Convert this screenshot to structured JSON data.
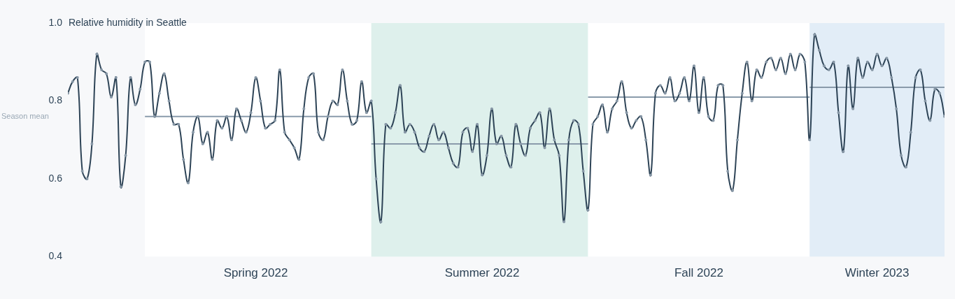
{
  "chart_data": {
    "type": "line",
    "title": "Relative humidity in Seattle",
    "categories": [
      null,
      null,
      null,
      null,
      null,
      null,
      null,
      null,
      null,
      null,
      null,
      null,
      null,
      null,
      null,
      null,
      null,
      null,
      null,
      null,
      null,
      null,
      null,
      null,
      null,
      null,
      null,
      null,
      null,
      null,
      null,
      null,
      null,
      null,
      null,
      null,
      null,
      null,
      null,
      "Spring 2022",
      null,
      null,
      null,
      null,
      null,
      null,
      null,
      null,
      null,
      null,
      null,
      null,
      null,
      null,
      null,
      null,
      null,
      null,
      null,
      null,
      null,
      null,
      null,
      null,
      null,
      null,
      null,
      null,
      null,
      null,
      null,
      null,
      null,
      null,
      null,
      null,
      null,
      null,
      null,
      null,
      null,
      null,
      null,
      null,
      null,
      null,
      "Summer 2022",
      null,
      null,
      null,
      null,
      null,
      null,
      null,
      null,
      null,
      null,
      null,
      null,
      null,
      null,
      null,
      null,
      null,
      null,
      null,
      null,
      null,
      null,
      null,
      null,
      null,
      null,
      null,
      null,
      null,
      null,
      null,
      null,
      null,
      null,
      null,
      null,
      null,
      null,
      null,
      null,
      null,
      null,
      null,
      null,
      "Fall 2022",
      null,
      null,
      null,
      null,
      null,
      null,
      null,
      null,
      null,
      null,
      null,
      null,
      null,
      null,
      null,
      null,
      null,
      null,
      null,
      null,
      null,
      null,
      null,
      null,
      null,
      null,
      null,
      null,
      null,
      null,
      null,
      null,
      null,
      null,
      null,
      null,
      "Winter 2023",
      null,
      null,
      null,
      null,
      null,
      null,
      null,
      null,
      null,
      null,
      null,
      null,
      null,
      null
    ],
    "values": [
      0.82,
      0.85,
      0.86,
      0.62,
      0.6,
      0.69,
      0.92,
      0.88,
      0.87,
      0.81,
      0.86,
      0.58,
      0.66,
      0.86,
      0.79,
      0.83,
      0.9,
      0.9,
      0.76,
      0.82,
      0.87,
      0.8,
      0.74,
      0.74,
      0.65,
      0.59,
      0.72,
      0.76,
      0.69,
      0.72,
      0.65,
      0.75,
      0.73,
      0.76,
      0.7,
      0.78,
      0.75,
      0.72,
      0.77,
      0.86,
      0.8,
      0.73,
      0.74,
      0.75,
      0.88,
      0.72,
      0.7,
      0.68,
      0.65,
      0.78,
      0.86,
      0.87,
      0.72,
      0.7,
      0.76,
      0.8,
      0.79,
      0.88,
      0.8,
      0.74,
      0.75,
      0.85,
      0.77,
      0.8,
      0.6,
      0.49,
      0.74,
      0.73,
      0.77,
      0.84,
      0.72,
      0.74,
      0.72,
      0.68,
      0.67,
      0.71,
      0.74,
      0.7,
      0.72,
      0.68,
      0.64,
      0.63,
      0.72,
      0.73,
      0.67,
      0.74,
      0.61,
      0.66,
      0.78,
      0.69,
      0.71,
      0.66,
      0.63,
      0.74,
      0.69,
      0.66,
      0.73,
      0.75,
      0.77,
      0.68,
      0.78,
      0.7,
      0.66,
      0.49,
      0.7,
      0.75,
      0.74,
      0.62,
      0.52,
      0.74,
      0.76,
      0.79,
      0.72,
      0.78,
      0.8,
      0.85,
      0.77,
      0.73,
      0.75,
      0.76,
      0.7,
      0.61,
      0.82,
      0.84,
      0.82,
      0.86,
      0.8,
      0.82,
      0.86,
      0.8,
      0.89,
      0.77,
      0.86,
      0.76,
      0.75,
      0.84,
      0.84,
      0.62,
      0.57,
      0.7,
      0.82,
      0.9,
      0.8,
      0.88,
      0.86,
      0.9,
      0.91,
      0.88,
      0.91,
      0.87,
      0.92,
      0.88,
      0.92,
      0.9,
      0.7,
      0.97,
      0.93,
      0.89,
      0.88,
      0.9,
      0.77,
      0.67,
      0.89,
      0.78,
      0.91,
      0.86,
      0.9,
      0.88,
      0.92,
      0.89,
      0.91,
      0.86,
      0.78,
      0.66,
      0.63,
      0.72,
      0.86,
      0.88,
      0.8,
      0.75,
      0.83,
      0.82,
      0.76
    ],
    "color": "#2d4356",
    "marker": "circle",
    "ylim": [
      0.4,
      1
    ],
    "yticks": [
      0.4,
      0.6,
      0.8,
      {
        "value": 1,
        "label": "1.0"
      }
    ],
    "grid": false,
    "seasons": [
      {
        "start": 16,
        "end": 63,
        "mean": 0.76,
        "color": "#ffffff"
      },
      {
        "start": 63,
        "end": 108,
        "mean": 0.69,
        "color": "#def0ec"
      },
      {
        "start": 108,
        "end": 154,
        "mean": 0.81,
        "color": "#ffffff"
      },
      {
        "start": 154,
        "end": 182,
        "mean": 0.835,
        "color": "#e2edf7"
      }
    ],
    "annotations": [
      {
        "text": "Season mean",
        "y": 0.76
      }
    ]
  }
}
